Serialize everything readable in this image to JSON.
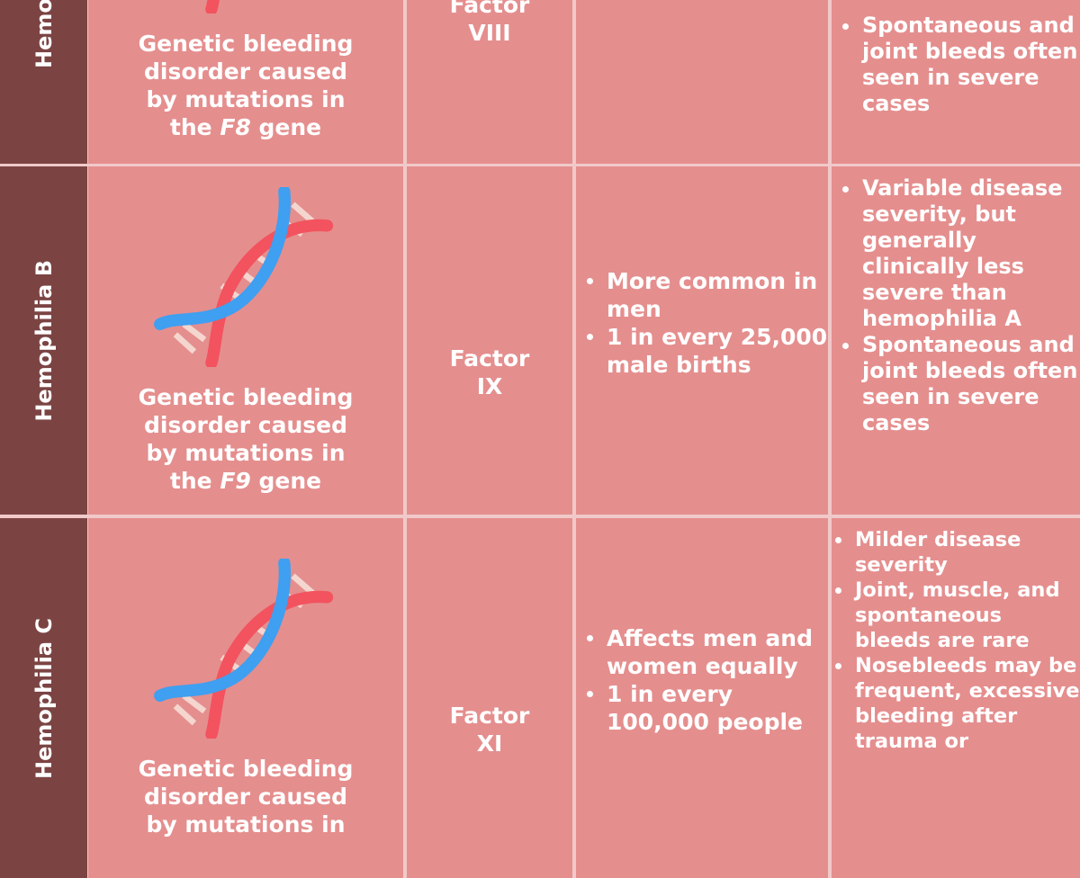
{
  "rows": [
    {
      "label": "Hemophilia A",
      "description": {
        "before": "Genetic bleeding disorder caused by mutations in the",
        "gene": "F8",
        "after": "gene"
      },
      "factor": "Factor VIII",
      "prevalence": [],
      "features": [
        "Spontaneous and joint bleeds often seen in severe cases"
      ]
    },
    {
      "label": "Hemophilia B",
      "description": {
        "before": "Genetic bleeding disorder caused by mutations in the",
        "gene": "F9",
        "after": "gene"
      },
      "factor": "Factor IX",
      "prevalence": [
        "More common in men",
        "1 in every 25,000 male births"
      ],
      "features": [
        "Variable disease severity, but generally clinically less severe than hemophilia A",
        "Spontaneous and joint bleeds often seen in severe cases"
      ]
    },
    {
      "label": "Hemophilia C",
      "description": {
        "before": "Genetic bleeding disorder caused by mutations in"
      },
      "factor": "Factor XI",
      "prevalence": [
        "Affects men and women equally",
        "1 in every 100,000 people"
      ],
      "features": [
        "Milder disease severity",
        "Joint, muscle, and spontaneous bleeds are rare",
        "Nosebleeds may be frequent, excessive bleeding after trauma or"
      ]
    }
  ]
}
